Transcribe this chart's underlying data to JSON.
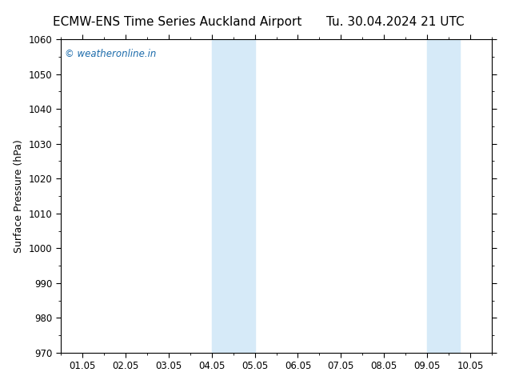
{
  "title_left": "ECMW-ENS Time Series Auckland Airport",
  "title_right": "Tu. 30.04.2024 21 UTC",
  "ylabel": "Surface Pressure (hPa)",
  "ylim": [
    970,
    1060
  ],
  "yticks": [
    970,
    980,
    990,
    1000,
    1010,
    1020,
    1030,
    1040,
    1050,
    1060
  ],
  "xtick_labels": [
    "01.05",
    "02.05",
    "03.05",
    "04.05",
    "05.05",
    "06.05",
    "07.05",
    "08.05",
    "09.05",
    "10.05"
  ],
  "xtick_positions": [
    0,
    1,
    2,
    3,
    4,
    5,
    6,
    7,
    8,
    9
  ],
  "xlim": [
    -0.5,
    9.5
  ],
  "shaded_regions": [
    {
      "xmin": 3.0,
      "xmax": 4.0,
      "color": "#d6eaf8"
    },
    {
      "xmin": 8.0,
      "xmax": 8.75,
      "color": "#d6eaf8"
    }
  ],
  "watermark": "© weatheronline.in",
  "watermark_color": "#1a6aaa",
  "background_color": "#ffffff",
  "plot_bg_color": "#ffffff",
  "spine_color": "#000000",
  "tick_color": "#000000",
  "title_fontsize": 11,
  "label_fontsize": 9,
  "tick_fontsize": 8.5
}
